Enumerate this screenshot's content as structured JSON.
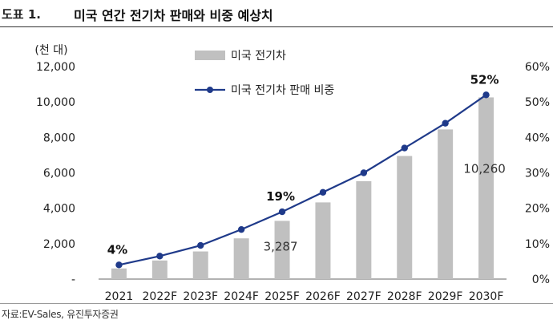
{
  "header": {
    "label": "도표 1.",
    "title": "미국 연간 전기차 판매와 비중 예상치"
  },
  "source": "자료:EV-Sales, 유진투자증권",
  "chart_data": {
    "type": "bar",
    "title": "미국 연간 전기차 판매와 비중 예상치",
    "categories": [
      "2021",
      "2022F",
      "2023F",
      "2024F",
      "2025F",
      "2026F",
      "2027F",
      "2028F",
      "2029F",
      "2030F"
    ],
    "series": [
      {
        "name": "미국 전기차",
        "type": "bar",
        "axis": "left",
        "values": [
          600,
          1050,
          1560,
          2300,
          3287,
          4330,
          5530,
          6950,
          8450,
          10260
        ]
      },
      {
        "name": "미국 전기차 판매 비중",
        "type": "line",
        "axis": "right",
        "values": [
          4,
          6.5,
          9.5,
          14,
          19,
          24.5,
          30,
          37,
          44,
          52
        ]
      }
    ],
    "ylabel_left": "(천 대)",
    "ylim_left": [
      0,
      12000
    ],
    "yticks_left": [
      "-",
      "2,000",
      "4,000",
      "6,000",
      "8,000",
      "10,000",
      "12,000"
    ],
    "ylim_right": [
      0,
      60
    ],
    "yticks_right": [
      "0%",
      "10%",
      "20%",
      "30%",
      "40%",
      "50%",
      "60%"
    ],
    "annotations": [
      {
        "series": 1,
        "index": 0,
        "text": "4%"
      },
      {
        "series": 1,
        "index": 4,
        "text": "19%"
      },
      {
        "series": 1,
        "index": 9,
        "text": "52%"
      },
      {
        "series": 0,
        "index": 4,
        "text": "3,287"
      },
      {
        "series": 0,
        "index": 9,
        "text": "10,260"
      }
    ],
    "legend": [
      "미국 전기차",
      "미국 전기차 판매 비중"
    ],
    "colors": {
      "bar": "#c0c0c0",
      "line": "#1f3a8a",
      "marker": "#1f3a8a"
    }
  }
}
